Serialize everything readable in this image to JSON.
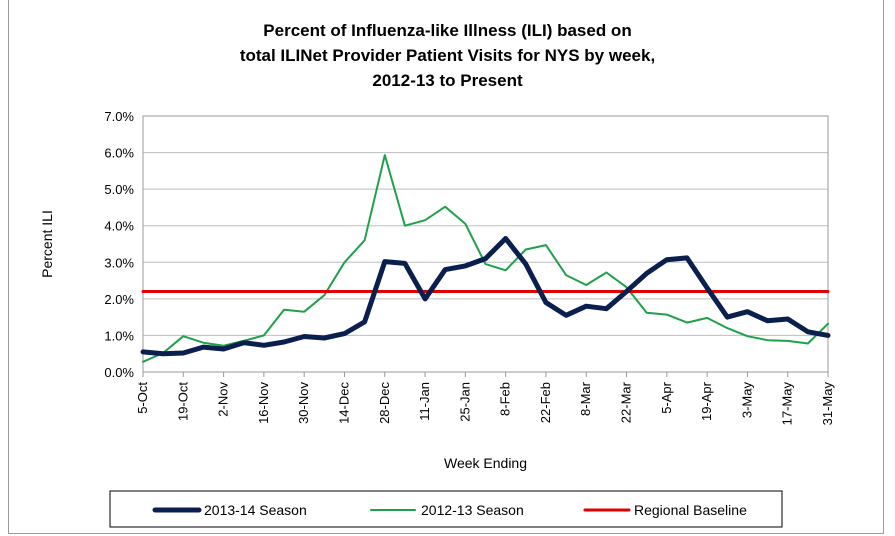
{
  "chart_data": {
    "type": "line",
    "title": [
      "Percent of Influenza-like Illness (ILI) based on",
      "total ILINet Provider Patient Visits for NYS by week,",
      "2012-13 to Present"
    ],
    "xlabel": "Week Ending",
    "ylabel": "Percent ILI",
    "ylim": [
      0,
      7
    ],
    "yticks": [
      "0.0%",
      "1.0%",
      "2.0%",
      "3.0%",
      "4.0%",
      "5.0%",
      "6.0%",
      "7.0%"
    ],
    "x_tick_labels": [
      "5-Oct",
      "19-Oct",
      "2-Nov",
      "16-Nov",
      "30-Nov",
      "14-Dec",
      "28-Dec",
      "11-Jan",
      "25-Jan",
      "8-Feb",
      "22-Feb",
      "8-Mar",
      "22-Mar",
      "5-Apr",
      "19-Apr",
      "3-May",
      "17-May",
      "31-May"
    ],
    "grid": true,
    "legend_position": "bottom",
    "series": [
      {
        "name": "2013-14 Season",
        "color": "#0b1f4f",
        "values": [
          0.55,
          0.5,
          0.52,
          0.68,
          0.63,
          0.8,
          0.73,
          0.82,
          0.97,
          0.93,
          1.05,
          1.37,
          3.02,
          2.97,
          2.0,
          2.8,
          2.9,
          3.1,
          3.65,
          2.95,
          1.9,
          1.55,
          1.8,
          1.73,
          2.2,
          2.7,
          3.07,
          3.12,
          2.3,
          1.5,
          1.65,
          1.4,
          1.45,
          1.1,
          1.0
        ]
      },
      {
        "name": "2012-13 Season",
        "color": "#1fa04a",
        "values": [
          0.28,
          0.52,
          0.98,
          0.8,
          0.72,
          0.85,
          1.0,
          1.7,
          1.65,
          2.1,
          3.0,
          3.6,
          5.93,
          4.0,
          4.15,
          4.52,
          4.05,
          2.95,
          2.78,
          3.35,
          3.47,
          2.65,
          2.38,
          2.72,
          2.32,
          1.62,
          1.57,
          1.35,
          1.48,
          1.2,
          0.98,
          0.87,
          0.85,
          0.78,
          1.32
        ]
      },
      {
        "name": "Regional Baseline",
        "color": "#e00000",
        "values": [
          2.2,
          2.2,
          2.2,
          2.2,
          2.2,
          2.2,
          2.2,
          2.2,
          2.2,
          2.2,
          2.2,
          2.2,
          2.2,
          2.2,
          2.2,
          2.2,
          2.2,
          2.2,
          2.2,
          2.2,
          2.2,
          2.2,
          2.2,
          2.2,
          2.2,
          2.2,
          2.2,
          2.2,
          2.2,
          2.2,
          2.2,
          2.2,
          2.2,
          2.2,
          2.2
        ]
      }
    ]
  }
}
